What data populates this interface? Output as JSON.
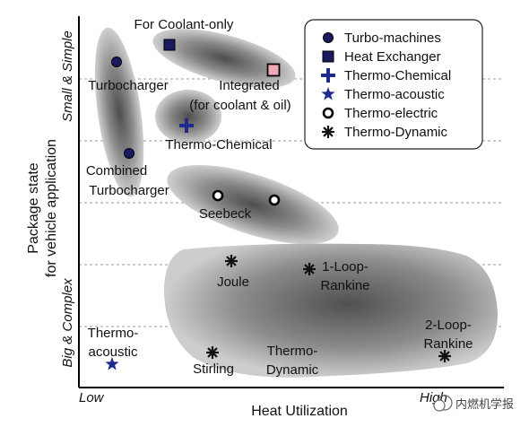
{
  "axes": {
    "x_label": "Heat Utilization",
    "x_low": "Low",
    "x_high": "High",
    "y_label_line1": "Package state",
    "y_label_line2": "for vehicle application",
    "y_top": "Small & Simple",
    "y_bottom": "Big & Complex"
  },
  "legend": {
    "items": [
      {
        "label": "Turbo-machines",
        "icon": "filled-circle"
      },
      {
        "label": "Heat Exchanger",
        "icon": "filled-square"
      },
      {
        "label": "Thermo-Chemical",
        "icon": "plus"
      },
      {
        "label": "Thermo-acoustic",
        "icon": "star"
      },
      {
        "label": "Thermo-electric",
        "icon": "hollow-circle"
      },
      {
        "label": "Thermo-Dynamic",
        "icon": "asterisk"
      }
    ]
  },
  "labels": {
    "coolant_only": "For Coolant-only",
    "turbocharger": "Turbocharger",
    "integrated_1": "Integrated",
    "integrated_2": "(for coolant & oil)",
    "thermo_chemical": "Thermo-Chemical",
    "combined_1": "Combined",
    "combined_2": "Turbocharger",
    "seebeck": "Seebeck",
    "joule": "Joule",
    "rankine1_1": "1-Loop-",
    "rankine1_2": "Rankine",
    "rankine2_1": "2-Loop-",
    "rankine2_2": "Rankine",
    "acoustic_1": "Thermo-",
    "acoustic_2": "acoustic",
    "stirling": "Stirling",
    "dynamic_1": "Thermo-",
    "dynamic_2": "Dynamic"
  },
  "watermark": "内燃机学报",
  "colors": {
    "marker": "#1a1a5e",
    "pink": "#f2a7b8",
    "plus": "#1f2a8a",
    "star": "#1f2a8a",
    "asterisk": "#111111"
  }
}
